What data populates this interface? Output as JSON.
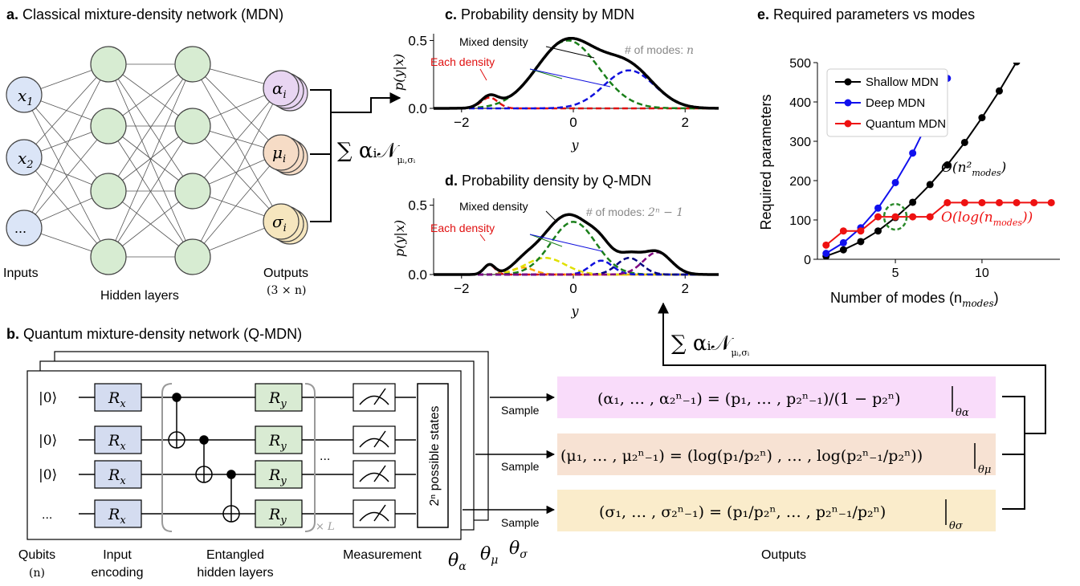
{
  "panel_a": {
    "title_letter": "a.",
    "title_text": " Classical mixture-density network (MDN)",
    "inputs": [
      "x",
      "x",
      "..."
    ],
    "input_subs": [
      "1",
      "2",
      ""
    ],
    "outputs": [
      "α",
      "μ",
      "σ"
    ],
    "output_sub": "i",
    "label_inputs": "Inputs",
    "label_hidden": "Hidden layers",
    "label_outputs": "Outputs",
    "label_outputs_size": "(3 × n)",
    "sum_formula": "∑ αᵢ𝒩",
    "sum_sub": "μᵢ,σᵢ"
  },
  "panel_b": {
    "title_letter": "b.",
    "title_text": " Quantum mixture-density network (Q-MDN)",
    "qubit_states": [
      "|0⟩",
      "|0⟩",
      "|0⟩",
      "..."
    ],
    "gate_rx": "R",
    "gate_rx_sub": "x",
    "gate_ry": "R",
    "gate_ry_sub": "y",
    "ellipsis": "...",
    "repeat": "× L",
    "states_box": "2ⁿ possible states",
    "thetas": [
      "θ",
      "θ",
      "θ"
    ],
    "theta_subs": [
      "α",
      "μ",
      "σ"
    ],
    "label_qubits": "Qubits",
    "label_qubits_n": "(n)",
    "label_input_enc_1": "Input",
    "label_input_enc_2": "encoding",
    "label_entangled_1": "Entangled",
    "label_entangled_2": "hidden layers",
    "label_measurement": "Measurement",
    "label_outputs": "Outputs",
    "sample": "Sample",
    "formula_alpha": "(α₁, … , α₂ⁿ₋₁) = (p₁, … , p₂ⁿ₋₁)/(1 − p₂ⁿ)",
    "formula_alpha_sub": "θα",
    "formula_mu": "(μ₁, … , μ₂ⁿ₋₁) = (log(p₁/p₂ⁿ) , … , log(p₂ⁿ₋₁/p₂ⁿ))",
    "formula_mu_sub": "θμ",
    "formula_sigma": "(σ₁, … , σ₂ⁿ₋₁) = (p₁/p₂ⁿ, … , p₂ⁿ₋₁/p₂ⁿ)",
    "formula_sigma_sub": "θσ",
    "sum_formula": "∑ αᵢ𝒩",
    "sum_sub": "μᵢ,σᵢ"
  },
  "panel_c": {
    "title_letter": "c.",
    "title_text": " Probability density by MDN",
    "ylabel": "p(y|x)",
    "xlabel": "y",
    "mixed": "Mixed density",
    "each": "Each density",
    "modes": "# of modes: ",
    "modes_val": "n",
    "xticks": [
      "−2",
      "0",
      "2"
    ],
    "yticks": [
      "0.0",
      "0.5"
    ]
  },
  "panel_d": {
    "title_letter": "d.",
    "title_text": " Probability density by Q-MDN",
    "ylabel": "p(y|x)",
    "xlabel": "y",
    "mixed": "Mixed density",
    "each": "Each density",
    "modes": "# of modes: ",
    "modes_val": "2ⁿ − 1",
    "xticks": [
      "−2",
      "0",
      "2"
    ],
    "yticks": [
      "0.0",
      "0.5"
    ]
  },
  "panel_e": {
    "title_letter": "e.",
    "title_text": " Required parameters vs modes",
    "ylabel": "Required parameters",
    "xlabel": "Number of modes (n",
    "xlabel_sub": "modes",
    "xlabel_end": ")",
    "annot_quad": "O(n²",
    "annot_quad_sub": "modes",
    "annot_quad_end": ")",
    "annot_log": "O(log(n",
    "annot_log_sub": "modes",
    "annot_log_end": "))",
    "colors": {
      "shallow": "#000000",
      "deep": "#1010ee",
      "quantum": "#ee1111",
      "highlight": "#2a8a2a"
    }
  },
  "chart_data": [
    {
      "type": "line",
      "title": "Probability density by MDN",
      "xlabel": "y",
      "ylabel": "p(y|x)",
      "xlim": [
        -2.5,
        2.6
      ],
      "ylim": [
        0,
        0.55
      ],
      "components": [
        {
          "mu": -1.5,
          "sigma": 0.15,
          "weight": 0.08,
          "color": "#e01010"
        },
        {
          "mu": -0.1,
          "sigma": 0.55,
          "weight": 0.5,
          "color": "#1a7f1a"
        },
        {
          "mu": 1.0,
          "sigma": 0.45,
          "weight": 0.28,
          "color": "#1010dd"
        }
      ]
    },
    {
      "type": "line",
      "title": "Probability density by Q-MDN",
      "xlabel": "y",
      "ylabel": "p(y|x)",
      "xlim": [
        -2.5,
        2.6
      ],
      "ylim": [
        0,
        0.55
      ],
      "components": [
        {
          "mu": -1.5,
          "sigma": 0.1,
          "weight": 0.07,
          "color": "#e01010"
        },
        {
          "mu": -0.9,
          "sigma": 0.2,
          "weight": 0.05,
          "color": "#ffa500"
        },
        {
          "mu": -0.5,
          "sigma": 0.35,
          "weight": 0.12,
          "color": "#e0e000"
        },
        {
          "mu": 0.0,
          "sigma": 0.4,
          "weight": 0.38,
          "color": "#1a7f1a"
        },
        {
          "mu": 0.5,
          "sigma": 0.2,
          "weight": 0.1,
          "color": "#1010dd"
        },
        {
          "mu": 1.0,
          "sigma": 0.22,
          "weight": 0.12,
          "color": "#000080"
        },
        {
          "mu": 1.5,
          "sigma": 0.25,
          "weight": 0.16,
          "color": "#800080"
        }
      ]
    },
    {
      "type": "line",
      "title": "Required parameters vs modes",
      "xlabel": "Number of modes (n_modes)",
      "ylabel": "Required parameters",
      "xlim": [
        0.5,
        14.5
      ],
      "ylim": [
        0,
        500
      ],
      "xticks": [
        5,
        10
      ],
      "yticks": [
        0,
        100,
        200,
        300,
        400,
        500
      ],
      "legend": "top-left",
      "series": [
        {
          "name": "Shallow MDN",
          "color": "#000000",
          "x": [
            1,
            2,
            3,
            4,
            5,
            6,
            7,
            8,
            9,
            10,
            11,
            12
          ],
          "y": [
            8,
            24,
            45,
            72,
            106,
            145,
            190,
            240,
            297,
            360,
            428,
            502
          ]
        },
        {
          "name": "Deep MDN",
          "color": "#1010ee",
          "x": [
            1,
            2,
            3,
            4,
            5,
            6,
            7,
            8
          ],
          "y": [
            15,
            42,
            80,
            130,
            195,
            270,
            360,
            460
          ]
        },
        {
          "name": "Quantum MDN",
          "color": "#ee1111",
          "x": [
            1,
            2,
            3,
            4,
            5,
            6,
            7,
            8,
            9,
            10,
            11,
            12,
            13,
            14
          ],
          "y": [
            36,
            72,
            72,
            108,
            108,
            108,
            108,
            144,
            144,
            144,
            144,
            144,
            144,
            144
          ]
        }
      ]
    }
  ]
}
